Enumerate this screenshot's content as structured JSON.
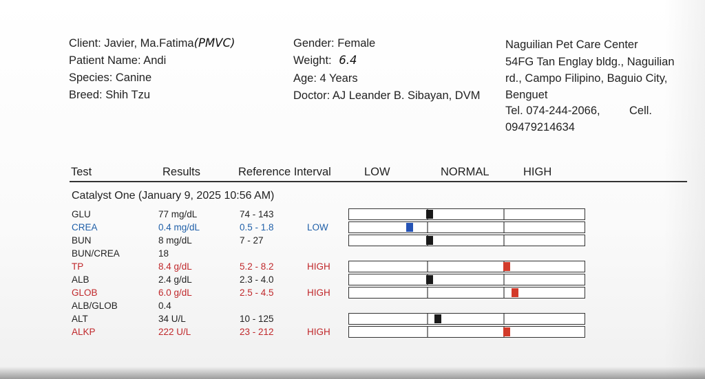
{
  "client": {
    "client": "Client: Javier, Ma.Fatima",
    "client_hw": "(PMVC)",
    "patient": "Patient Name: Andi",
    "species": "Species: Canine",
    "breed": "Breed: Shih Tzu"
  },
  "pet": {
    "gender": "Gender: Female",
    "weight_label": "Weight:",
    "weight_hw": "6.4",
    "age": "Age: 4 Years",
    "doctor": "Doctor: AJ Leander B. Sibayan, DVM"
  },
  "clinic": {
    "name": "Naguilian Pet Care Center",
    "addr1": "54FG Tan Englay bldg., Naguilian",
    "addr2": "rd., Campo Filipino, Baguio City,",
    "addr3": "Benguet",
    "tel": "Tel. 074-244-2066,",
    "cell_label": "Cell.",
    "cell": "09479214634"
  },
  "table_header": {
    "test": "Test",
    "results": "Results",
    "reference": "Reference Interval",
    "low": "LOW",
    "normal": "NORMAL",
    "high": "HIGH"
  },
  "section": "Catalyst One (January 9, 2025 10:56 AM)",
  "rows": [
    {
      "test": "GLU",
      "result": "77 mg/dL",
      "ref": "74 - 143",
      "flag": "",
      "status": "normal",
      "marker_pos": 0.34
    },
    {
      "test": "CREA",
      "result": "0.4 mg/dL",
      "ref": "0.5 - 1.8",
      "flag": "LOW",
      "status": "low",
      "marker_pos": 0.255
    },
    {
      "test": "BUN",
      "result": "8 mg/dL",
      "ref": "7 - 27",
      "flag": "",
      "status": "normal",
      "marker_pos": 0.34
    },
    {
      "test": "BUN/CREA",
      "result": "18",
      "ref": "",
      "flag": "",
      "status": "none",
      "marker_pos": null
    },
    {
      "test": "TP",
      "result": "8.4 g/dL",
      "ref": "5.2 - 8.2",
      "flag": "HIGH",
      "status": "high",
      "marker_pos": 0.665
    },
    {
      "test": "ALB",
      "result": "2.4 g/dL",
      "ref": "2.3 - 4.0",
      "flag": "",
      "status": "normal",
      "marker_pos": 0.34
    },
    {
      "test": "GLOB",
      "result": "6.0 g/dL",
      "ref": "2.5 - 4.5",
      "flag": "HIGH",
      "status": "high",
      "marker_pos": 0.7
    },
    {
      "test": "ALB/GLOB",
      "result": "0.4",
      "ref": "",
      "flag": "",
      "status": "none",
      "marker_pos": null
    },
    {
      "test": "ALT",
      "result": "34 U/L",
      "ref": "10 - 125",
      "flag": "",
      "status": "normal",
      "marker_pos": 0.375
    },
    {
      "test": "ALKP",
      "result": "222 U/L",
      "ref": "23 - 212",
      "flag": "HIGH",
      "status": "high",
      "marker_pos": 0.665
    }
  ]
}
